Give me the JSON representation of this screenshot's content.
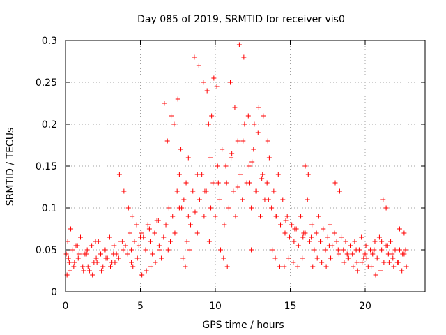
{
  "chart_data": {
    "type": "scatter",
    "title": "Day 085 of 2019, SRMTID for receiver vis0",
    "xlabel": "GPS time / hours",
    "ylabel": "SRMTID / TECUs",
    "xlim": [
      0,
      24
    ],
    "ylim": [
      0,
      0.3
    ],
    "x_ticks": [
      0,
      5,
      10,
      15,
      20
    ],
    "x_tick_labels": [
      "0",
      "5",
      "10",
      "15",
      "20"
    ],
    "y_ticks": [
      0,
      0.05,
      0.1,
      0.15,
      0.2,
      0.25,
      0.3
    ],
    "y_tick_labels": [
      "0",
      "0.05",
      "0.1",
      "0.15",
      "0.2",
      "0.25",
      "0.3"
    ],
    "grid": true,
    "legend": "none",
    "marker": "plus",
    "series": [
      {
        "name": "SRMTID",
        "color": "#ff0000",
        "x": [
          0.05,
          0.15,
          0.25,
          0.35,
          0.45,
          0.55,
          0.7,
          0.85,
          1.0,
          1.15,
          1.3,
          1.45,
          1.6,
          1.75,
          1.9,
          2.05,
          2.2,
          2.35,
          2.5,
          2.65,
          2.8,
          2.95,
          3.1,
          3.25,
          3.4,
          3.55,
          3.7,
          3.85,
          4.0,
          4.15,
          4.3,
          4.45,
          4.6,
          4.75,
          4.9,
          5.05,
          5.2,
          5.35,
          5.5,
          5.65,
          5.8,
          5.95,
          6.1,
          6.25,
          6.4,
          6.55,
          6.7,
          6.85,
          7.0,
          7.15,
          7.3,
          7.45,
          7.6,
          7.75,
          7.9,
          8.05,
          8.2,
          8.35,
          8.5,
          8.65,
          8.8,
          8.95,
          9.1,
          9.25,
          9.4,
          9.55,
          9.7,
          9.85,
          10.0,
          10.15,
          10.3,
          10.45,
          10.6,
          10.75,
          10.9,
          11.05,
          11.2,
          11.35,
          11.5,
          11.65,
          11.8,
          11.95,
          12.1,
          12.25,
          12.4,
          12.55,
          12.7,
          12.85,
          13.0,
          13.15,
          13.3,
          13.45,
          13.6,
          13.75,
          13.9,
          14.05,
          14.2,
          14.35,
          14.5,
          14.65,
          14.8,
          14.95,
          15.1,
          15.25,
          15.4,
          15.55,
          15.7,
          15.85,
          16.0,
          16.15,
          16.3,
          16.45,
          16.6,
          16.75,
          16.9,
          17.05,
          17.2,
          17.35,
          17.5,
          17.65,
          17.8,
          17.95,
          18.1,
          18.25,
          18.4,
          18.55,
          18.7,
          18.85,
          19.0,
          19.15,
          19.3,
          19.45,
          19.6,
          19.75,
          19.9,
          20.05,
          20.2,
          20.35,
          20.5,
          20.65,
          20.8,
          20.95,
          21.1,
          21.25,
          21.4,
          21.55,
          21.7,
          21.85,
          22.0,
          22.15,
          22.3,
          22.45,
          22.6,
          22.75,
          0.1,
          0.3,
          0.6,
          0.9,
          1.2,
          1.5,
          1.8,
          2.1,
          2.4,
          2.7,
          3.0,
          3.3,
          3.6,
          3.9,
          4.2,
          4.4,
          4.5,
          4.8,
          5.1,
          5.4,
          5.7,
          6.0,
          6.3,
          6.6,
          6.8,
          7.05,
          7.25,
          7.5,
          7.7,
          7.85,
          8.0,
          8.1,
          8.3,
          8.6,
          8.9,
          9.2,
          9.45,
          9.6,
          9.75,
          9.9,
          10.1,
          10.35,
          10.55,
          10.8,
          11.0,
          11.3,
          11.6,
          11.9,
          12.2,
          12.4,
          12.6,
          12.9,
          13.2,
          13.5,
          13.8,
          14.0,
          14.3,
          14.6,
          14.9,
          15.2,
          15.5,
          15.8,
          16.0,
          16.2,
          16.5,
          16.8,
          17.1,
          17.4,
          17.7,
          18.0,
          18.3,
          18.6,
          18.9,
          19.2,
          19.5,
          19.8,
          20.1,
          20.4,
          20.7,
          21.0,
          21.2,
          21.4,
          21.6,
          21.9,
          22.2,
          22.5,
          22.7,
          0.2,
          0.8,
          1.4,
          2.0,
          2.6,
          3.2,
          3.8,
          4.4,
          5.0,
          5.6,
          6.2,
          6.9,
          7.6,
          8.2,
          8.8,
          9.3,
          9.65,
          10.2,
          10.7,
          11.1,
          11.5,
          11.85,
          12.3,
          12.45,
          12.75,
          13.1,
          13.55,
          14.1,
          14.7,
          15.3,
          15.9,
          16.4,
          17.0,
          17.6,
          18.2,
          18.8,
          19.4,
          20.0,
          20.6,
          21.1,
          21.5,
          21.8,
          22.3,
          22.6
        ],
        "y": [
          0.045,
          0.06,
          0.035,
          0.075,
          0.05,
          0.03,
          0.055,
          0.04,
          0.065,
          0.03,
          0.045,
          0.05,
          0.025,
          0.055,
          0.035,
          0.04,
          0.06,
          0.045,
          0.03,
          0.05,
          0.04,
          0.065,
          0.035,
          0.055,
          0.045,
          0.04,
          0.06,
          0.05,
          0.055,
          0.045,
          0.07,
          0.09,
          0.06,
          0.08,
          0.055,
          0.07,
          0.065,
          0.05,
          0.08,
          0.06,
          0.045,
          0.07,
          0.085,
          0.055,
          0.04,
          0.065,
          0.08,
          0.05,
          0.06,
          0.09,
          0.07,
          0.12,
          0.14,
          0.1,
          0.11,
          0.13,
          0.16,
          0.08,
          0.12,
          0.095,
          0.07,
          0.11,
          0.14,
          0.09,
          0.12,
          0.2,
          0.1,
          0.13,
          0.09,
          0.15,
          0.11,
          0.17,
          0.08,
          0.13,
          0.1,
          0.16,
          0.12,
          0.09,
          0.18,
          0.14,
          0.11,
          0.2,
          0.13,
          0.15,
          0.1,
          0.17,
          0.12,
          0.19,
          0.09,
          0.14,
          0.11,
          0.13,
          0.16,
          0.1,
          0.12,
          0.09,
          0.14,
          0.08,
          0.11,
          0.07,
          0.09,
          0.065,
          0.08,
          0.06,
          0.075,
          0.055,
          0.09,
          0.065,
          0.07,
          0.11,
          0.06,
          0.08,
          0.05,
          0.07,
          0.09,
          0.06,
          0.075,
          0.05,
          0.065,
          0.08,
          0.055,
          0.07,
          0.06,
          0.045,
          0.065,
          0.05,
          0.06,
          0.04,
          0.055,
          0.045,
          0.06,
          0.035,
          0.05,
          0.065,
          0.04,
          0.055,
          0.03,
          0.05,
          0.045,
          0.06,
          0.04,
          0.065,
          0.05,
          0.035,
          0.055,
          0.045,
          0.06,
          0.04,
          0.05,
          0.035,
          0.075,
          0.025,
          0.07,
          0.03,
          0.02,
          0.025,
          0.035,
          0.045,
          0.025,
          0.03,
          0.02,
          0.035,
          0.025,
          0.04,
          0.03,
          0.035,
          0.14,
          0.12,
          0.1,
          0.035,
          0.03,
          0.04,
          0.02,
          0.025,
          0.03,
          0.035,
          0.05,
          0.225,
          0.18,
          0.21,
          0.2,
          0.23,
          0.17,
          0.04,
          0.03,
          0.06,
          0.05,
          0.28,
          0.27,
          0.25,
          0.24,
          0.06,
          0.21,
          0.255,
          0.245,
          0.05,
          0.04,
          0.03,
          0.25,
          0.22,
          0.295,
          0.28,
          0.21,
          0.05,
          0.2,
          0.22,
          0.21,
          0.18,
          0.05,
          0.04,
          0.03,
          0.03,
          0.04,
          0.035,
          0.03,
          0.04,
          0.15,
          0.14,
          0.03,
          0.04,
          0.035,
          0.03,
          0.04,
          0.13,
          0.12,
          0.035,
          0.04,
          0.03,
          0.025,
          0.035,
          0.04,
          0.03,
          0.02,
          0.025,
          0.11,
          0.1,
          0.035,
          0.03,
          0.035,
          0.045,
          0.05,
          0.04,
          0.055,
          0.045,
          0.06,
          0.05,
          0.045,
          0.06,
          0.05,
          0.065,
          0.075,
          0.085,
          0.1,
          0.1,
          0.09,
          0.14,
          0.12,
          0.16,
          0.13,
          0.15,
          0.165,
          0.125,
          0.18,
          0.13,
          0.155,
          0.12,
          0.135,
          0.11,
          0.09,
          0.085,
          0.075,
          0.07,
          0.065,
          0.06,
          0.055,
          0.05,
          0.045,
          0.05,
          0.045,
          0.05,
          0.06,
          0.055,
          0.045,
          0.05,
          0.045
        ]
      }
    ]
  }
}
